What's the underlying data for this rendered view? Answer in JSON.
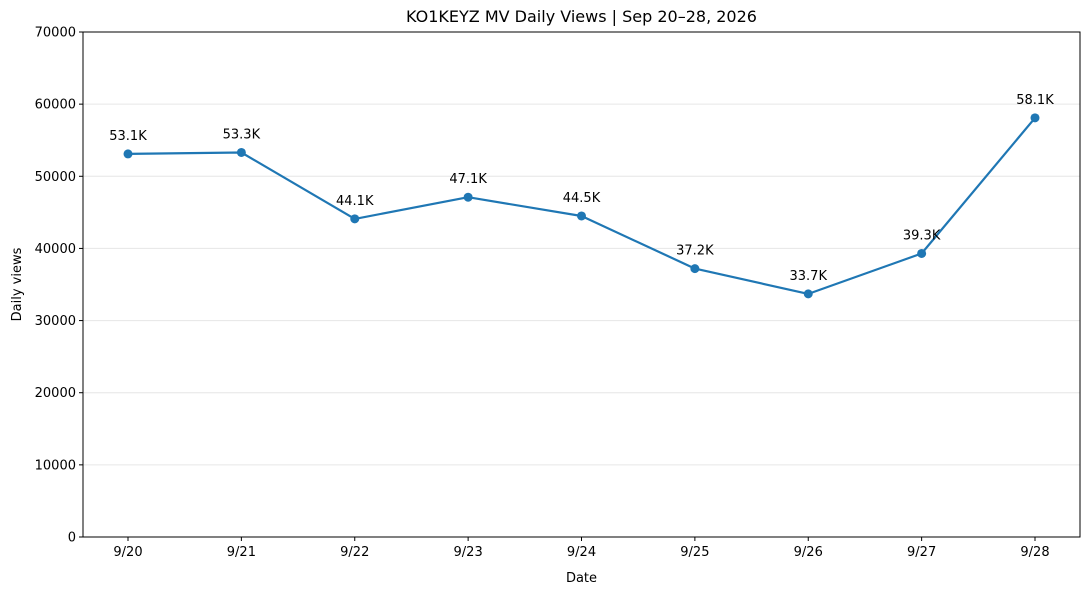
{
  "chart_data": {
    "type": "line",
    "title": "KO1KEYZ MV Daily Views | Sep 20–28, 2026",
    "xlabel": "Date",
    "ylabel": "Daily views",
    "categories": [
      "9/20",
      "9/21",
      "9/22",
      "9/23",
      "9/24",
      "9/25",
      "9/26",
      "9/27",
      "9/28"
    ],
    "series": [
      {
        "values": [
          53100,
          53300,
          44100,
          47100,
          44500,
          37200,
          33700,
          39300,
          58100
        ],
        "labels": [
          "53.1K",
          "53.3K",
          "44.1K",
          "47.1K",
          "44.5K",
          "37.2K",
          "33.7K",
          "39.3K",
          "58.1K"
        ],
        "color": "#1f77b4"
      }
    ],
    "ylim": [
      0,
      70000
    ],
    "yticks": [
      "0",
      "10000",
      "20000",
      "30000",
      "40000",
      "50000",
      "60000",
      "70000"
    ],
    "grid": "horizontal",
    "legend": "none"
  }
}
